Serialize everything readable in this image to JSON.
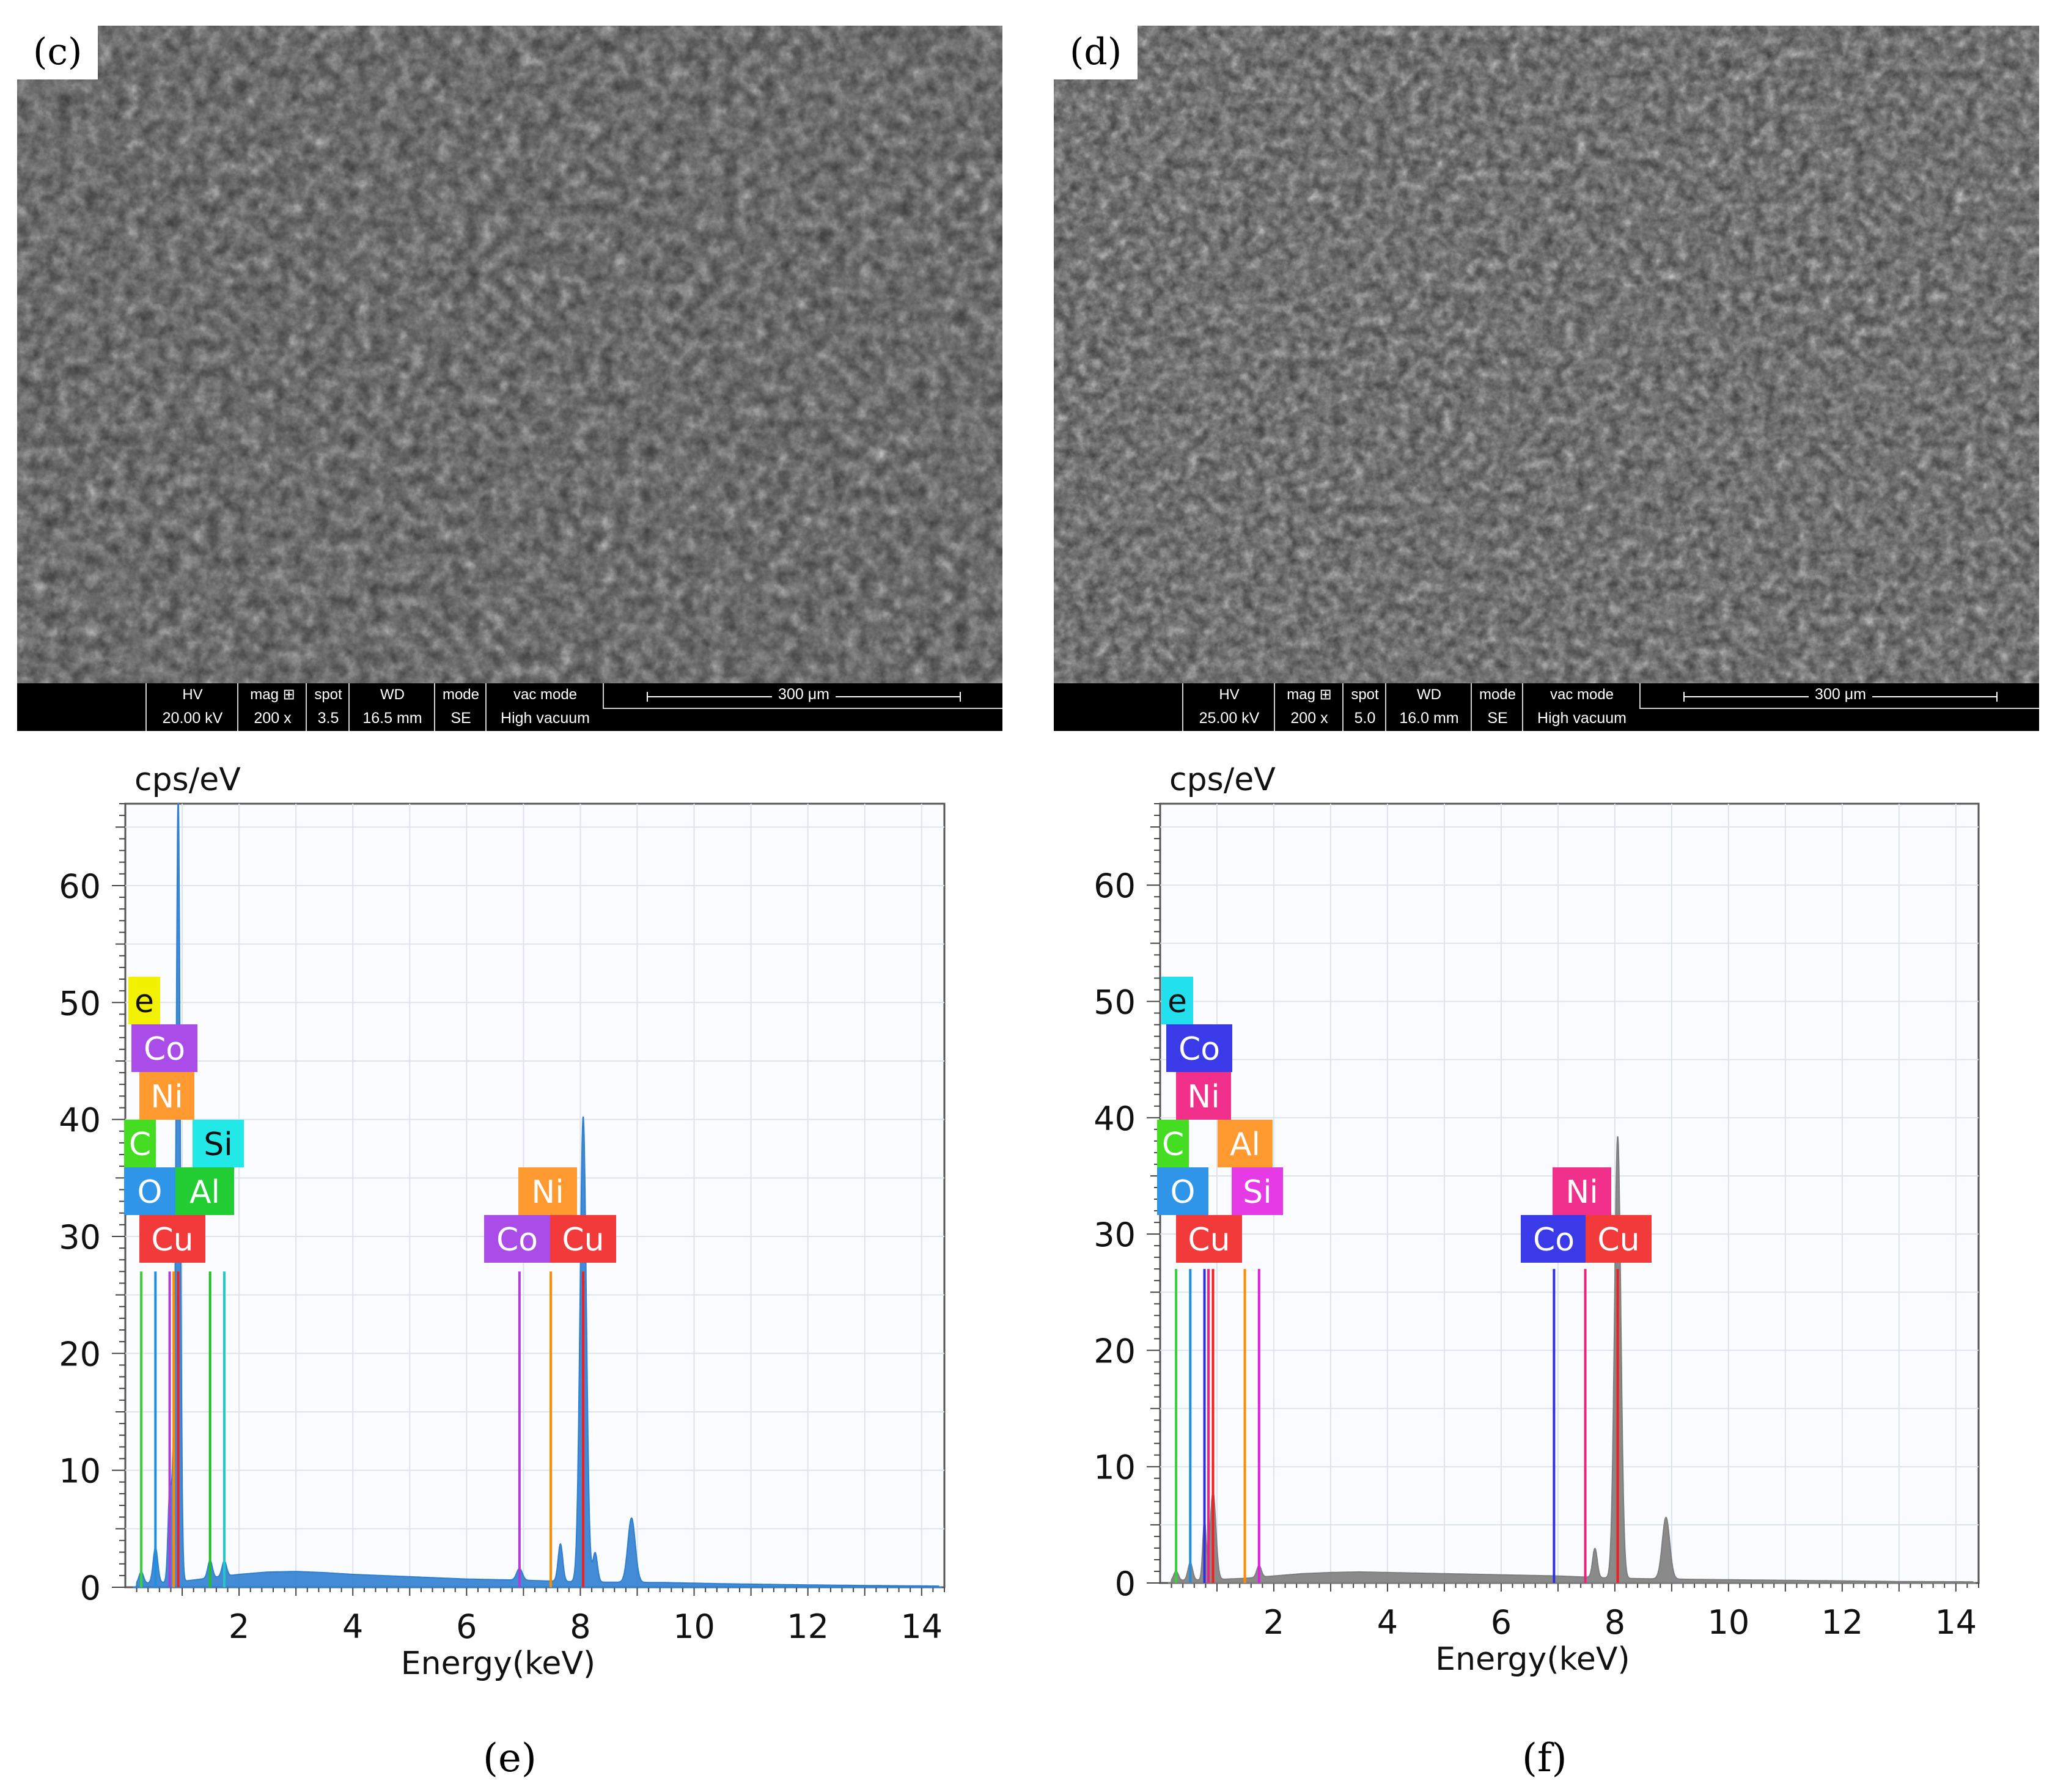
{
  "panels": [
    {
      "label": "(c)",
      "info": {
        "hv_label": "HV",
        "hv": "20.00 kV",
        "mag_label": "mag ⊞",
        "mag": "200 x",
        "spot_label": "spot",
        "spot": "3.5",
        "wd_label": "WD",
        "wd": "16.5 mm",
        "mode_label": "mode",
        "mode": "SE",
        "vac_label": "vac mode",
        "vac": "High vacuum",
        "scale": "300 μm"
      }
    },
    {
      "label": "(d)",
      "info": {
        "hv_label": "HV",
        "hv": "25.00 kV",
        "mag_label": "mag ⊞",
        "mag": "200 x",
        "spot_label": "spot",
        "spot": "5.0",
        "wd_label": "WD",
        "wd": "16.0 mm",
        "mode_label": "mode",
        "mode": "SE",
        "vac_label": "vac mode",
        "vac": "High vacuum",
        "scale": "300 μm"
      }
    }
  ],
  "captions": [
    "(e)",
    "(f)"
  ],
  "chart_data": [
    {
      "type": "line",
      "ylabel": "cps/eV",
      "xlabel": "Energy(keV)",
      "xlim": [
        0,
        14.4
      ],
      "ylim": [
        0,
        67
      ],
      "xticks": [
        2,
        4,
        6,
        8,
        10,
        12,
        14
      ],
      "yticks": [
        0,
        10,
        20,
        30,
        40,
        50,
        60
      ],
      "grid": true,
      "spectrum_color": "#2f7fd0",
      "background": [
        [
          0.2,
          0.3
        ],
        [
          1.0,
          0.5
        ],
        [
          1.5,
          0.8
        ],
        [
          2.0,
          1.1
        ],
        [
          2.5,
          1.3
        ],
        [
          3.0,
          1.35
        ],
        [
          3.5,
          1.25
        ],
        [
          4.0,
          1.1
        ],
        [
          5.0,
          0.9
        ],
        [
          6.0,
          0.7
        ],
        [
          7.0,
          0.6
        ],
        [
          8.0,
          0.45
        ],
        [
          9.5,
          0.4
        ],
        [
          10.5,
          0.3
        ],
        [
          12.0,
          0.2
        ],
        [
          13.0,
          0.15
        ],
        [
          14.3,
          0.1
        ]
      ],
      "peaks": [
        {
          "keV": 0.28,
          "height": 1.0,
          "width": 0.04
        },
        {
          "keV": 0.53,
          "height": 3.0,
          "width": 0.04
        },
        {
          "keV": 0.78,
          "height": 7.5,
          "width": 0.03
        },
        {
          "keV": 0.85,
          "height": 9.0,
          "width": 0.03
        },
        {
          "keV": 0.93,
          "height": 67.0,
          "width": 0.035
        },
        {
          "keV": 1.49,
          "height": 1.5,
          "width": 0.04
        },
        {
          "keV": 1.74,
          "height": 1.3,
          "width": 0.04
        },
        {
          "keV": 6.93,
          "height": 1.0,
          "width": 0.05
        },
        {
          "keV": 7.65,
          "height": 3.2,
          "width": 0.04
        },
        {
          "keV": 8.05,
          "height": 39.8,
          "width": 0.055
        },
        {
          "keV": 8.26,
          "height": 2.5,
          "width": 0.04
        },
        {
          "keV": 8.9,
          "height": 5.5,
          "width": 0.065
        }
      ],
      "markers": [
        {
          "element": "C",
          "keV": 0.28,
          "color": "#39d039",
          "top": 27
        },
        {
          "element": "O",
          "keV": 0.53,
          "color": "#1e8fe0",
          "top": 27
        },
        {
          "element": "Co",
          "keV": 0.78,
          "color": "#b23bd6",
          "top": 27
        },
        {
          "element": "Ni",
          "keV": 0.85,
          "color": "#ff8c00",
          "top": 27
        },
        {
          "element": "Cu",
          "keV": 0.93,
          "color": "#f02020",
          "top": 27
        },
        {
          "element": "Al",
          "keV": 1.49,
          "color": "#20c020",
          "top": 27
        },
        {
          "element": "Si",
          "keV": 1.74,
          "color": "#20c8c8",
          "top": 27
        },
        {
          "element": "Co",
          "keV": 6.93,
          "color": "#b23bd6",
          "top": 27
        },
        {
          "element": "Ni",
          "keV": 7.48,
          "color": "#ff8c00",
          "top": 27
        },
        {
          "element": "Cu",
          "keV": 8.05,
          "color": "#f02020",
          "top": 27
        }
      ],
      "legend": [
        {
          "text": "e",
          "color": "#f2f200"
        },
        {
          "text": "Co",
          "color": "#a94ce8"
        },
        {
          "text": "Ni",
          "color": "#ff9a30"
        },
        {
          "text": "C",
          "color": "#44dd22"
        },
        {
          "text": "Si",
          "color": "#22e8e8"
        },
        {
          "text": "O",
          "color": "#2f95e8"
        },
        {
          "text": "Al",
          "color": "#22cc33"
        },
        {
          "text": "Cu",
          "color": "#f23a3a"
        },
        {
          "text": "Ni",
          "color": "#ff9a30"
        },
        {
          "text": "Co",
          "color": "#a94ce8"
        },
        {
          "text": "Cu",
          "color": "#f23a3a"
        }
      ]
    },
    {
      "type": "line",
      "ylabel": "cps/eV",
      "xlabel": "Energy(keV)",
      "xlim": [
        0,
        14.4
      ],
      "ylim": [
        0,
        67
      ],
      "xticks": [
        2,
        4,
        6,
        8,
        10,
        12,
        14
      ],
      "yticks": [
        0,
        10,
        20,
        30,
        40,
        50,
        60
      ],
      "grid": true,
      "spectrum_color": "#7d7d7d",
      "background": [
        [
          0.2,
          0.2
        ],
        [
          1.0,
          0.3
        ],
        [
          1.5,
          0.4
        ],
        [
          2.0,
          0.6
        ],
        [
          2.5,
          0.8
        ],
        [
          3.0,
          0.9
        ],
        [
          3.5,
          0.95
        ],
        [
          4.0,
          0.9
        ],
        [
          5.0,
          0.8
        ],
        [
          6.0,
          0.7
        ],
        [
          7.0,
          0.6
        ],
        [
          8.0,
          0.4
        ],
        [
          9.5,
          0.3
        ],
        [
          10.5,
          0.25
        ],
        [
          12.0,
          0.18
        ],
        [
          13.0,
          0.12
        ],
        [
          14.3,
          0.1
        ]
      ],
      "peaks": [
        {
          "keV": 0.28,
          "height": 0.8,
          "width": 0.04
        },
        {
          "keV": 0.53,
          "height": 1.5,
          "width": 0.04
        },
        {
          "keV": 0.78,
          "height": 5.0,
          "width": 0.03
        },
        {
          "keV": 0.93,
          "height": 7.5,
          "width": 0.05
        },
        {
          "keV": 1.74,
          "height": 1.0,
          "width": 0.04
        },
        {
          "keV": 7.65,
          "height": 2.5,
          "width": 0.04
        },
        {
          "keV": 8.05,
          "height": 38.0,
          "width": 0.055
        },
        {
          "keV": 8.9,
          "height": 5.3,
          "width": 0.065
        }
      ],
      "markers": [
        {
          "element": "C",
          "keV": 0.28,
          "color": "#39d039",
          "top": 27
        },
        {
          "element": "O",
          "keV": 0.53,
          "color": "#1e8fe0",
          "top": 27
        },
        {
          "element": "Co",
          "keV": 0.78,
          "color": "#3030e0",
          "top": 27
        },
        {
          "element": "Ni",
          "keV": 0.85,
          "color": "#f0207c",
          "top": 27
        },
        {
          "element": "Cu",
          "keV": 0.93,
          "color": "#f02020",
          "top": 27
        },
        {
          "element": "Al",
          "keV": 1.49,
          "color": "#ff8c00",
          "top": 27
        },
        {
          "element": "Si",
          "keV": 1.74,
          "color": "#e020e0",
          "top": 27
        },
        {
          "element": "Co",
          "keV": 6.93,
          "color": "#3030e0",
          "top": 27
        },
        {
          "element": "Ni",
          "keV": 7.48,
          "color": "#f0207c",
          "top": 27
        },
        {
          "element": "Cu",
          "keV": 8.05,
          "color": "#f02020",
          "top": 27
        }
      ],
      "legend": [
        {
          "text": "e",
          "color": "#22e0ee"
        },
        {
          "text": "Co",
          "color": "#3a3ae8"
        },
        {
          "text": "Ni",
          "color": "#f0308a"
        },
        {
          "text": "C",
          "color": "#44dd22"
        },
        {
          "text": "Al",
          "color": "#ff9a30"
        },
        {
          "text": "O",
          "color": "#2f95e8"
        },
        {
          "text": "Si",
          "color": "#e63ae6"
        },
        {
          "text": "Cu",
          "color": "#f23a3a"
        },
        {
          "text": "Ni",
          "color": "#f0308a"
        },
        {
          "text": "Co",
          "color": "#3a3ae8"
        },
        {
          "text": "Cu",
          "color": "#f23a3a"
        }
      ]
    }
  ]
}
